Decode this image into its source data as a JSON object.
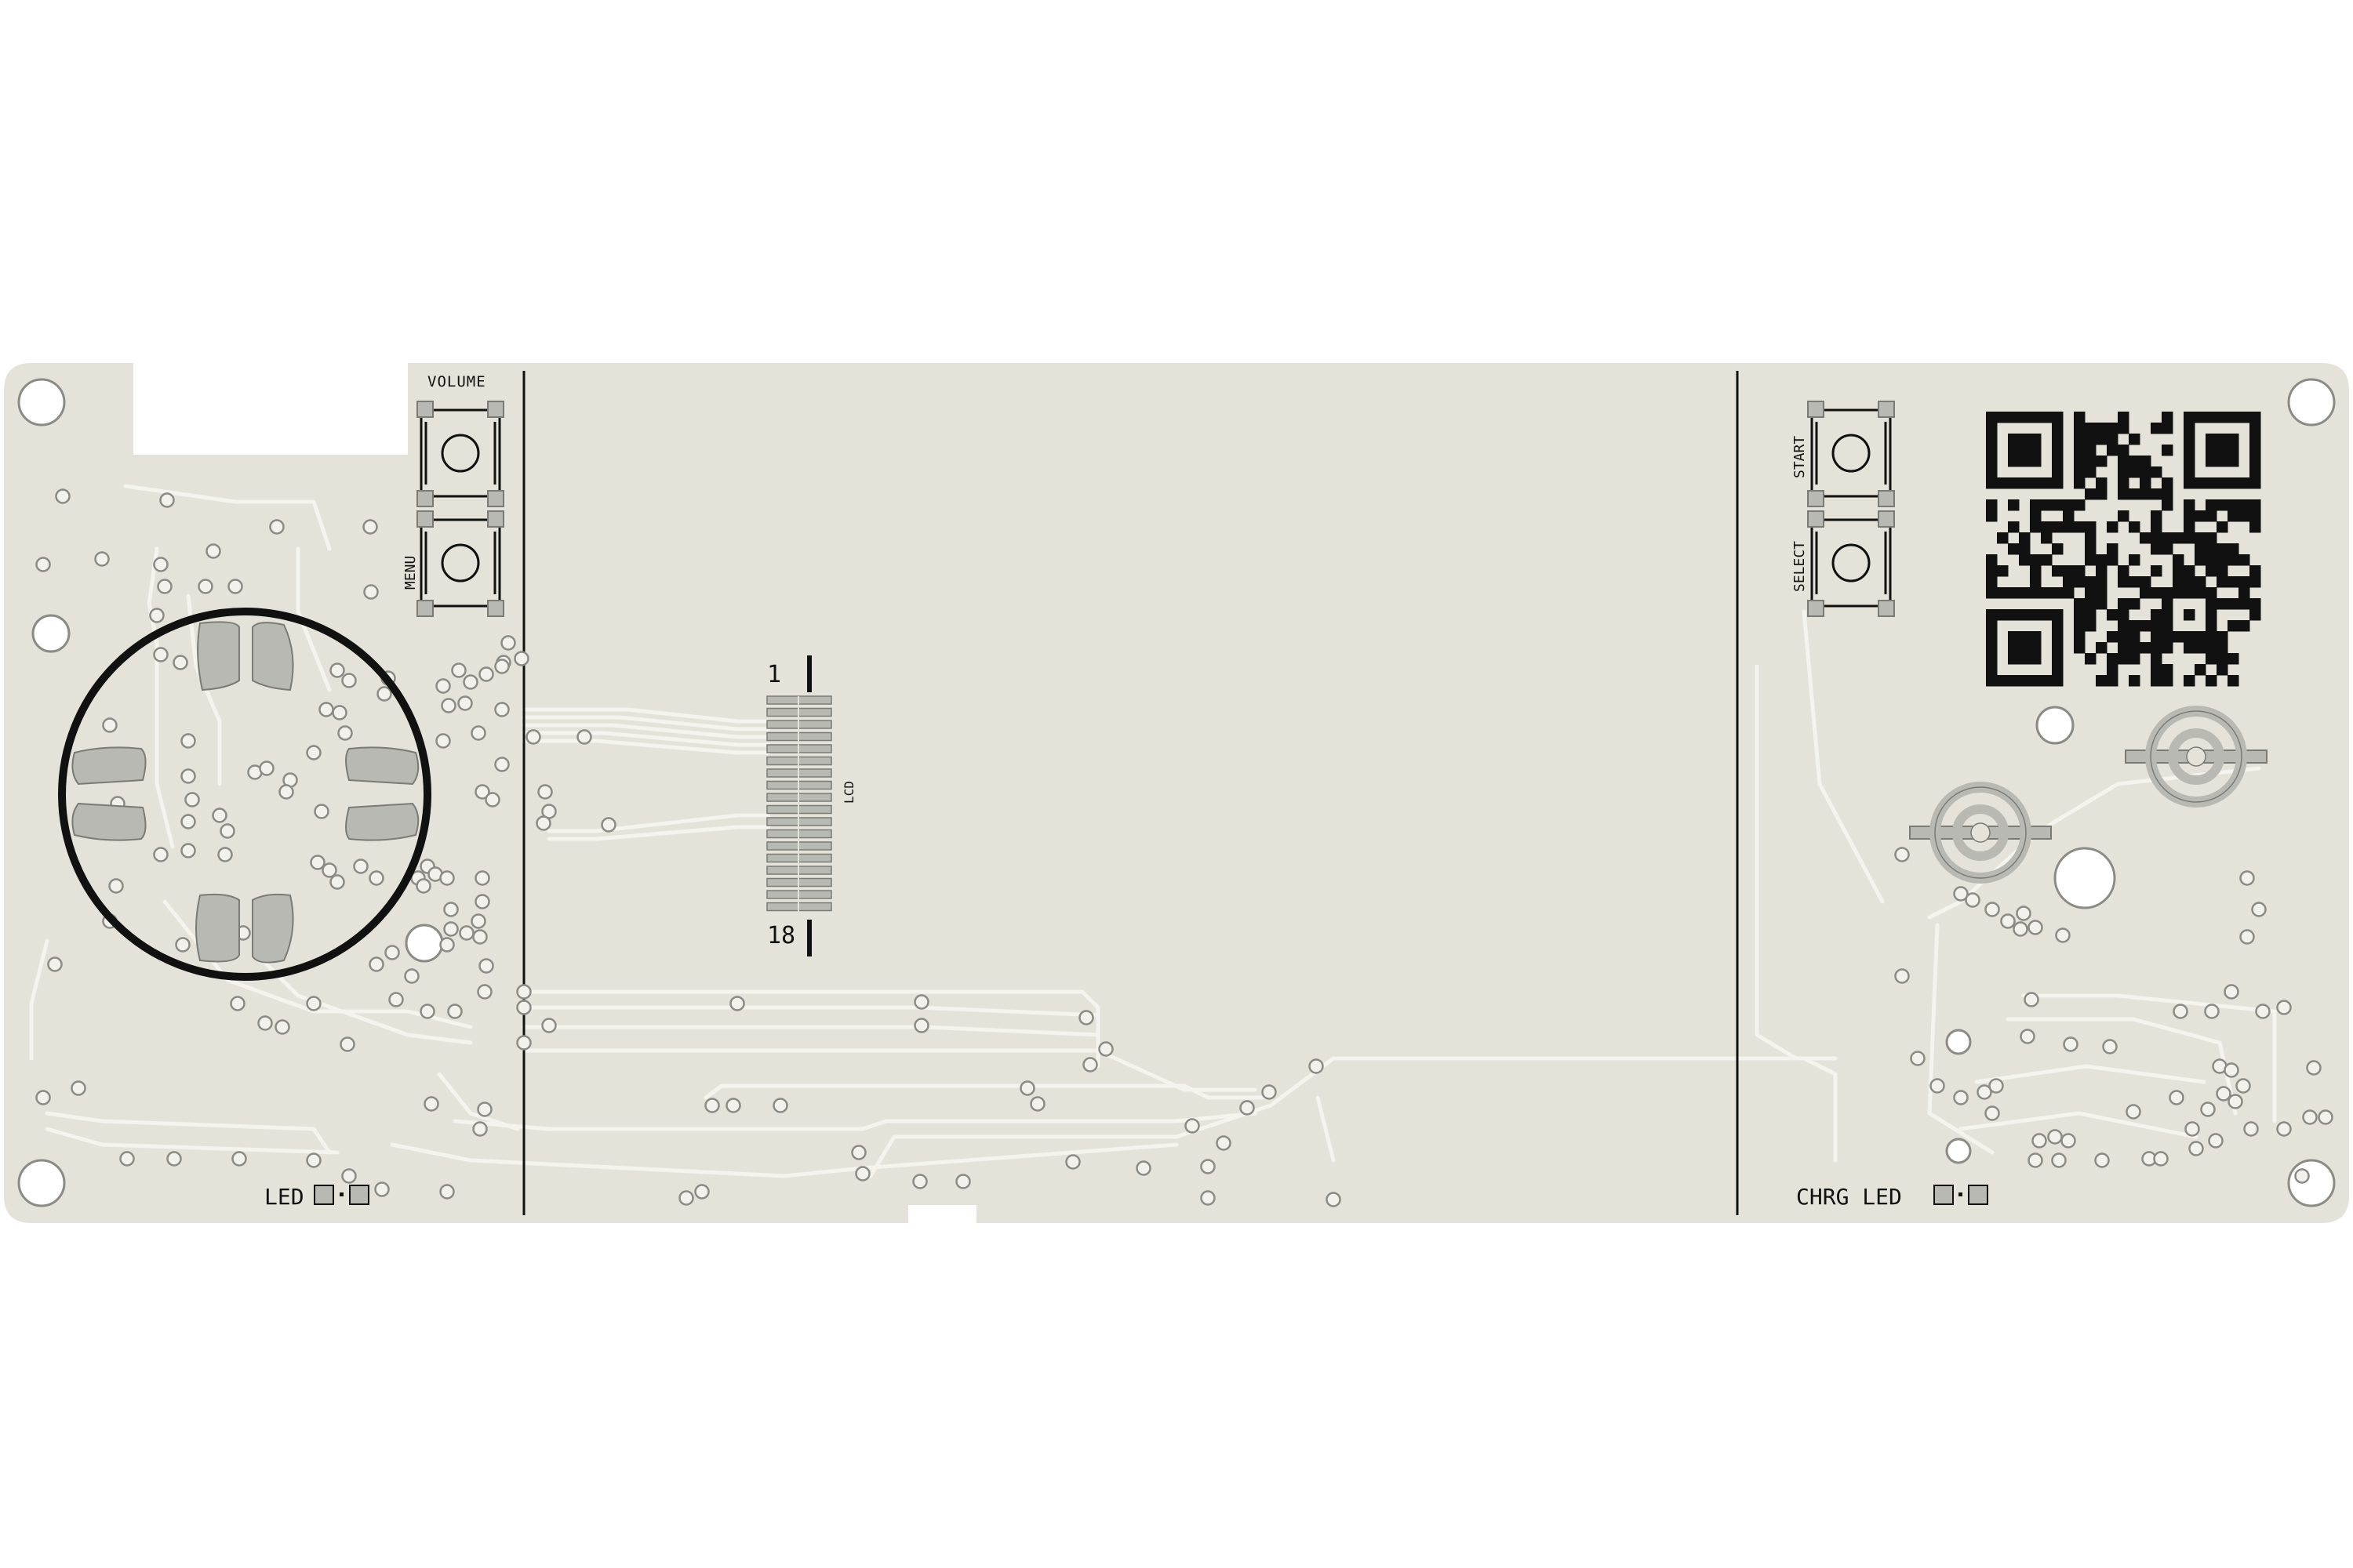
{
  "colors": {
    "board": "#e4e2d9",
    "trace": "#f4f3ee",
    "via_fill": "#f2f1ec",
    "via_ring": "#8b8b86",
    "pad": "#b9b9b4",
    "pad_edge": "#7a7a76",
    "silk": "#111111",
    "background": "#ffffff"
  },
  "labels": {
    "volume": "VOLUME",
    "menu": "MENU",
    "start": "START",
    "select": "SELECT",
    "lcd": "LCD",
    "pin_first": "1",
    "pin_last": "18",
    "led": "LED",
    "chrg_led": "CHRG LED"
  },
  "components": {
    "dpad": "dpad-ring",
    "buttons": [
      "volume-button",
      "menu-button",
      "start-button",
      "select-button"
    ],
    "connector": "lcd-fpc-connector",
    "qr": "qr-code",
    "speaker_pads": 2
  }
}
